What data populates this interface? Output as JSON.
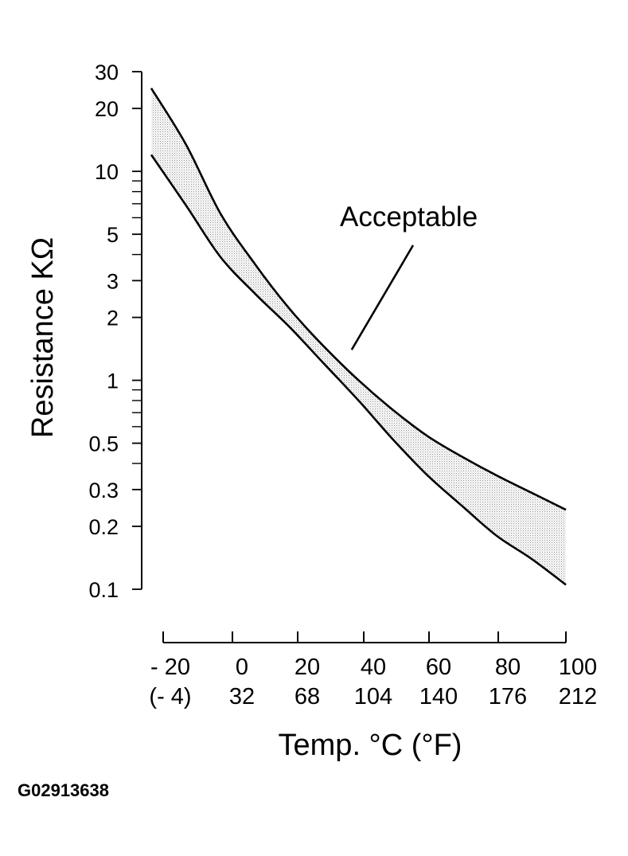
{
  "figure_id": "G02913638",
  "colors": {
    "ink": "#000000",
    "band_fill": "#d9d9d9",
    "background": "#ffffff"
  },
  "chart_data": {
    "type": "area",
    "ylabel": "Resistance KΩ",
    "xlabel": "Temp. °C (°F)",
    "y_scale": "log",
    "ylim": [
      0.1,
      30
    ],
    "xlim": [
      -20,
      100
    ],
    "y_ticks_labeled": [
      {
        "value": 30,
        "label": "30"
      },
      {
        "value": 20,
        "label": "20"
      },
      {
        "value": 10,
        "label": "10"
      },
      {
        "value": 5,
        "label": "5"
      },
      {
        "value": 3,
        "label": "3"
      },
      {
        "value": 2,
        "label": "2"
      },
      {
        "value": 1,
        "label": "1"
      },
      {
        "value": 0.5,
        "label": "0.5"
      },
      {
        "value": 0.3,
        "label": "0.3"
      },
      {
        "value": 0.2,
        "label": "0.2"
      },
      {
        "value": 0.1,
        "label": "0.1"
      }
    ],
    "y_ticks_minor": [
      9,
      8,
      7,
      6,
      4,
      0.9,
      0.8,
      0.7,
      0.6,
      0.4
    ],
    "x_ticks": [
      {
        "value": -20,
        "celsius": "- 20",
        "fahrenheit": "(- 4)"
      },
      {
        "value": 0,
        "celsius": "0",
        "fahrenheit": "32"
      },
      {
        "value": 20,
        "celsius": "20",
        "fahrenheit": "68"
      },
      {
        "value": 40,
        "celsius": "40",
        "fahrenheit": "104"
      },
      {
        "value": 60,
        "celsius": "60",
        "fahrenheit": "140"
      },
      {
        "value": 80,
        "celsius": "80",
        "fahrenheit": "176"
      },
      {
        "value": 100,
        "celsius": "100",
        "fahrenheit": "212"
      }
    ],
    "series": [
      {
        "role": "upper_limit",
        "x": [
          -20,
          -10,
          0,
          10,
          20,
          30,
          40,
          50,
          60,
          70,
          80,
          90,
          100
        ],
        "values": [
          25,
          13.5,
          6.3,
          3.6,
          2.2,
          1.45,
          1.0,
          0.72,
          0.54,
          0.43,
          0.35,
          0.29,
          0.24
        ]
      },
      {
        "role": "lower_limit",
        "x": [
          -20,
          -10,
          0,
          10,
          20,
          30,
          40,
          50,
          60,
          70,
          80,
          90,
          100
        ],
        "values": [
          12,
          6.9,
          3.9,
          2.6,
          1.8,
          1.2,
          0.8,
          0.52,
          0.35,
          0.25,
          0.18,
          0.14,
          0.105
        ]
      }
    ],
    "annotation": {
      "text": "Acceptable",
      "points_to": {
        "x": 38,
        "y": 1.4
      }
    },
    "grid": false,
    "legend": "none"
  }
}
